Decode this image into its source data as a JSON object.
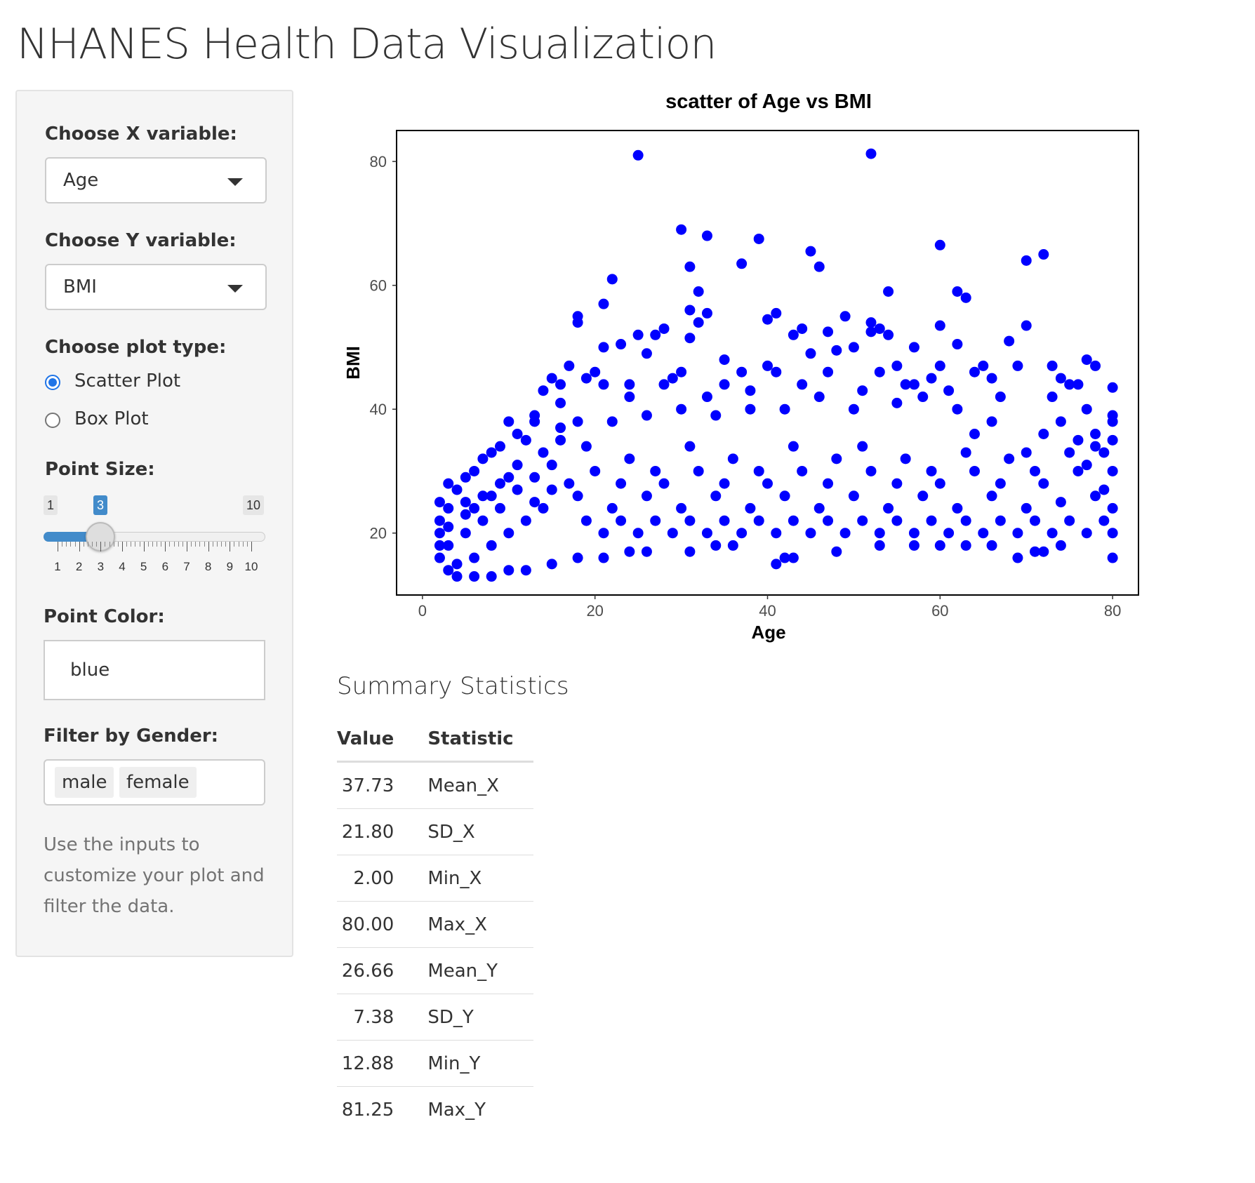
{
  "page": {
    "title": "NHANES Health Data Visualization"
  },
  "sidebar": {
    "x_variable": {
      "label": "Choose X variable:",
      "selected": "Age"
    },
    "y_variable": {
      "label": "Choose Y variable:",
      "selected": "BMI"
    },
    "plot_type": {
      "label": "Choose plot type:",
      "options": [
        {
          "label": "Scatter Plot",
          "checked": true
        },
        {
          "label": "Box Plot",
          "checked": false
        }
      ]
    },
    "point_size": {
      "label": "Point Size:",
      "min_label": "1",
      "max_label": "10",
      "value_label": "3",
      "value": 3,
      "min": 1,
      "max": 10,
      "ticks": [
        "1",
        "2",
        "3",
        "4",
        "5",
        "6",
        "7",
        "8",
        "9",
        "10"
      ]
    },
    "point_color": {
      "label": "Point Color:",
      "value": "blue"
    },
    "gender_filter": {
      "label": "Filter by Gender:",
      "chips": [
        "male",
        "female"
      ]
    },
    "help_text": "Use the inputs to customize your plot and filter the data."
  },
  "chart_data": {
    "type": "scatter",
    "title": "scatter of Age vs BMI",
    "xlabel": "Age",
    "ylabel": "BMI",
    "xlim": [
      -3,
      83
    ],
    "ylim": [
      10,
      85
    ],
    "xticks": [
      0,
      20,
      40,
      60,
      80
    ],
    "yticks": [
      20,
      40,
      60,
      80
    ],
    "grid": false,
    "point_color": "#0000ff",
    "points": [
      [
        25,
        81
      ],
      [
        52,
        81.25
      ],
      [
        30,
        69
      ],
      [
        33,
        68
      ],
      [
        39,
        67.5
      ],
      [
        45,
        65.5
      ],
      [
        46,
        63
      ],
      [
        31,
        63
      ],
      [
        37,
        63.5
      ],
      [
        60,
        66.5
      ],
      [
        70,
        64
      ],
      [
        72,
        65
      ],
      [
        22,
        61
      ],
      [
        32,
        59
      ],
      [
        21,
        57
      ],
      [
        31,
        56
      ],
      [
        33,
        55.5
      ],
      [
        41,
        55.5
      ],
      [
        40,
        54.5
      ],
      [
        49,
        55
      ],
      [
        54,
        59
      ],
      [
        62,
        59
      ],
      [
        63,
        58
      ],
      [
        52,
        54
      ],
      [
        53,
        53
      ],
      [
        60,
        53.5
      ],
      [
        18,
        55
      ],
      [
        18,
        54
      ],
      [
        32,
        54
      ],
      [
        25,
        52
      ],
      [
        27,
        52
      ],
      [
        28,
        53
      ],
      [
        43,
        52
      ],
      [
        44,
        53
      ],
      [
        47,
        52.5
      ],
      [
        52,
        52.5
      ],
      [
        54,
        52
      ],
      [
        70,
        53.5
      ],
      [
        68,
        51
      ],
      [
        31,
        51.5
      ],
      [
        23,
        50.5
      ],
      [
        21,
        50
      ],
      [
        26,
        49
      ],
      [
        62,
        50.5
      ],
      [
        57,
        50
      ],
      [
        50,
        50
      ],
      [
        48,
        49.5
      ],
      [
        35,
        48
      ],
      [
        45,
        49
      ],
      [
        55,
        47
      ],
      [
        60,
        47
      ],
      [
        65,
        47
      ],
      [
        69,
        47
      ],
      [
        73,
        47
      ],
      [
        77,
        48
      ],
      [
        78,
        47
      ],
      [
        17,
        47
      ],
      [
        20,
        46
      ],
      [
        19,
        45
      ],
      [
        15,
        45
      ],
      [
        30,
        46
      ],
      [
        37,
        46
      ],
      [
        41,
        46
      ],
      [
        74,
        45
      ],
      [
        66,
        45
      ],
      [
        64,
        46
      ],
      [
        14,
        43
      ],
      [
        16,
        44
      ],
      [
        21,
        44
      ],
      [
        24,
        44
      ],
      [
        28,
        44
      ],
      [
        56,
        44
      ],
      [
        59,
        45
      ],
      [
        75,
        44
      ],
      [
        76,
        44
      ],
      [
        80,
        43.5
      ],
      [
        13,
        38
      ],
      [
        13,
        39
      ],
      [
        10,
        38
      ],
      [
        11,
        36
      ],
      [
        9,
        34
      ],
      [
        8,
        33
      ],
      [
        7,
        32
      ],
      [
        6,
        30
      ],
      [
        5,
        29
      ],
      [
        3,
        28
      ],
      [
        4,
        27
      ],
      [
        5,
        25
      ],
      [
        2,
        25
      ],
      [
        3,
        24
      ],
      [
        6,
        24
      ],
      [
        8,
        26
      ],
      [
        10,
        29
      ],
      [
        12,
        35
      ],
      [
        14,
        33
      ],
      [
        16,
        37
      ],
      [
        2,
        22
      ],
      [
        2,
        20
      ],
      [
        3,
        18
      ],
      [
        2,
        16
      ],
      [
        3,
        14
      ],
      [
        4,
        13
      ],
      [
        6,
        13
      ],
      [
        8,
        13
      ],
      [
        10,
        14
      ],
      [
        12,
        14
      ],
      [
        15,
        15
      ],
      [
        18,
        16
      ],
      [
        21,
        16
      ],
      [
        24,
        17
      ],
      [
        26,
        17
      ],
      [
        31,
        17
      ],
      [
        34,
        18
      ],
      [
        36,
        18
      ],
      [
        41,
        15
      ],
      [
        42,
        16
      ],
      [
        43,
        16
      ],
      [
        48,
        17
      ],
      [
        53,
        18
      ],
      [
        57,
        18
      ],
      [
        60,
        18
      ],
      [
        63,
        18
      ],
      [
        66,
        18
      ],
      [
        69,
        16
      ],
      [
        71,
        17
      ],
      [
        72,
        17
      ],
      [
        74,
        18
      ],
      [
        80,
        16
      ],
      [
        80,
        20
      ],
      [
        80,
        24
      ],
      [
        80,
        30
      ],
      [
        80,
        35
      ],
      [
        80,
        39
      ],
      [
        80,
        38
      ],
      [
        78,
        34
      ],
      [
        76,
        35
      ],
      [
        74,
        38
      ],
      [
        77,
        31
      ],
      [
        72,
        36
      ],
      [
        70,
        33
      ],
      [
        66,
        38
      ],
      [
        64,
        36
      ],
      [
        62,
        40
      ],
      [
        58,
        42
      ],
      [
        55,
        41
      ],
      [
        50,
        40
      ],
      [
        46,
        42
      ],
      [
        42,
        40
      ],
      [
        38,
        40
      ],
      [
        34,
        39
      ],
      [
        30,
        40
      ],
      [
        26,
        39
      ],
      [
        22,
        38
      ],
      [
        18,
        38
      ],
      [
        16,
        35
      ],
      [
        20,
        30
      ],
      [
        24,
        32
      ],
      [
        28,
        28
      ],
      [
        32,
        30
      ],
      [
        36,
        32
      ],
      [
        40,
        28
      ],
      [
        44,
        30
      ],
      [
        48,
        32
      ],
      [
        52,
        30
      ],
      [
        56,
        32
      ],
      [
        60,
        28
      ],
      [
        64,
        30
      ],
      [
        68,
        32
      ],
      [
        72,
        28
      ],
      [
        76,
        30
      ],
      [
        78,
        26
      ],
      [
        74,
        25
      ],
      [
        70,
        24
      ],
      [
        66,
        26
      ],
      [
        62,
        24
      ],
      [
        58,
        26
      ],
      [
        54,
        24
      ],
      [
        50,
        26
      ],
      [
        46,
        24
      ],
      [
        42,
        26
      ],
      [
        38,
        24
      ],
      [
        34,
        26
      ],
      [
        30,
        24
      ],
      [
        26,
        26
      ],
      [
        22,
        24
      ],
      [
        18,
        26
      ],
      [
        14,
        24
      ],
      [
        12,
        22
      ],
      [
        10,
        20
      ],
      [
        8,
        18
      ],
      [
        6,
        16
      ],
      [
        4,
        15
      ],
      [
        2,
        18
      ],
      [
        5,
        20
      ],
      [
        7,
        22
      ],
      [
        9,
        24
      ],
      [
        11,
        27
      ],
      [
        13,
        29
      ],
      [
        15,
        31
      ],
      [
        17,
        28
      ],
      [
        19,
        22
      ],
      [
        21,
        20
      ],
      [
        23,
        22
      ],
      [
        25,
        20
      ],
      [
        27,
        22
      ],
      [
        29,
        20
      ],
      [
        31,
        22
      ],
      [
        33,
        20
      ],
      [
        35,
        22
      ],
      [
        37,
        20
      ],
      [
        39,
        22
      ],
      [
        41,
        20
      ],
      [
        43,
        22
      ],
      [
        45,
        20
      ],
      [
        47,
        22
      ],
      [
        49,
        20
      ],
      [
        51,
        22
      ],
      [
        53,
        20
      ],
      [
        55,
        22
      ],
      [
        57,
        20
      ],
      [
        59,
        22
      ],
      [
        61,
        20
      ],
      [
        63,
        22
      ],
      [
        65,
        20
      ],
      [
        67,
        22
      ],
      [
        69,
        20
      ],
      [
        71,
        22
      ],
      [
        73,
        20
      ],
      [
        75,
        22
      ],
      [
        77,
        20
      ],
      [
        79,
        22
      ],
      [
        79,
        27
      ],
      [
        79,
        33
      ],
      [
        78,
        36
      ],
      [
        75,
        33
      ],
      [
        71,
        30
      ],
      [
        67,
        28
      ],
      [
        63,
        33
      ],
      [
        59,
        30
      ],
      [
        55,
        28
      ],
      [
        51,
        34
      ],
      [
        47,
        28
      ],
      [
        43,
        34
      ],
      [
        39,
        30
      ],
      [
        35,
        28
      ],
      [
        31,
        34
      ],
      [
        27,
        30
      ],
      [
        23,
        28
      ],
      [
        19,
        34
      ],
      [
        15,
        27
      ],
      [
        13,
        25
      ],
      [
        11,
        31
      ],
      [
        9,
        28
      ],
      [
        7,
        26
      ],
      [
        5,
        23
      ],
      [
        3,
        21
      ],
      [
        16,
        41
      ],
      [
        24,
        42
      ],
      [
        33,
        42
      ],
      [
        38,
        43
      ],
      [
        44,
        44
      ],
      [
        51,
        43
      ],
      [
        57,
        44
      ],
      [
        61,
        43
      ],
      [
        67,
        42
      ],
      [
        73,
        42
      ],
      [
        77,
        40
      ],
      [
        29,
        45
      ],
      [
        35,
        44
      ],
      [
        40,
        47
      ],
      [
        47,
        46
      ],
      [
        53,
        46
      ]
    ]
  },
  "summary": {
    "heading": "Summary Statistics",
    "columns": [
      "Value",
      "Statistic"
    ],
    "rows": [
      [
        "37.73",
        "Mean_X"
      ],
      [
        "21.80",
        "SD_X"
      ],
      [
        "2.00",
        "Min_X"
      ],
      [
        "80.00",
        "Max_X"
      ],
      [
        "26.66",
        "Mean_Y"
      ],
      [
        "7.38",
        "SD_Y"
      ],
      [
        "12.88",
        "Min_Y"
      ],
      [
        "81.25",
        "Max_Y"
      ]
    ]
  }
}
